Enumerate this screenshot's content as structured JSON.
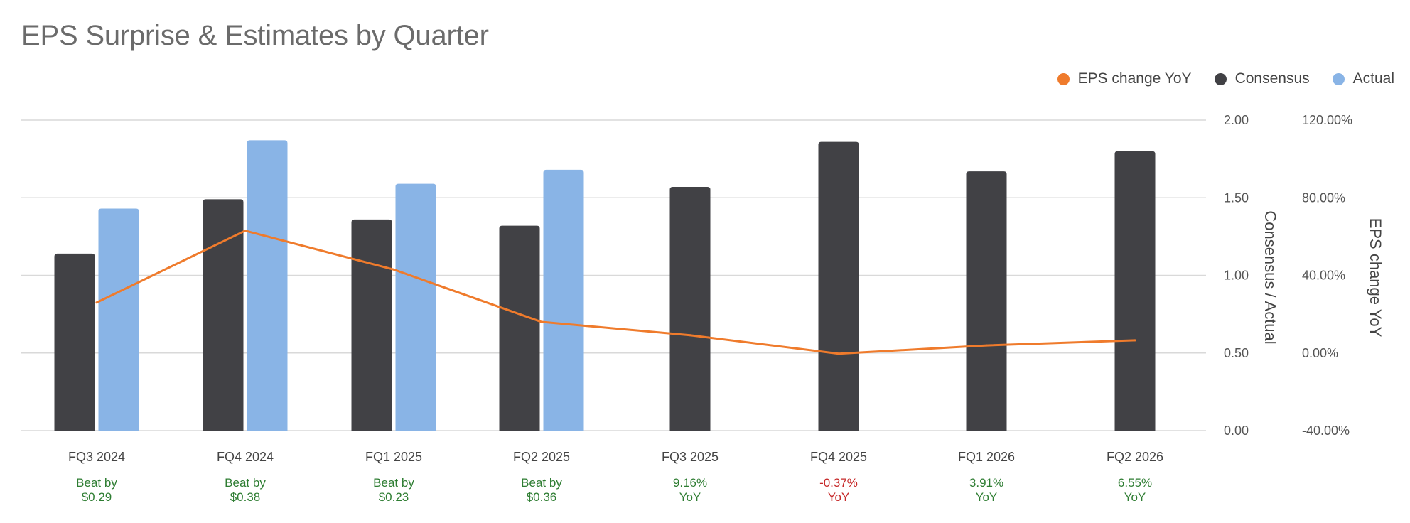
{
  "title": "EPS Surprise & Estimates by Quarter",
  "legend": [
    {
      "label": "EPS change YoY",
      "color": "#ef7b2c",
      "icon": "legend-dot-orange"
    },
    {
      "label": "Consensus",
      "color": "#414145",
      "icon": "legend-dot-dark"
    },
    {
      "label": "Actual",
      "color": "#89b4e6",
      "icon": "legend-dot-blue"
    }
  ],
  "chart_data": {
    "type": "bar",
    "categories": [
      "FQ3 2024",
      "FQ4 2024",
      "FQ1 2025",
      "FQ2 2025",
      "FQ3 2025",
      "FQ4 2025",
      "FQ1 2026",
      "FQ2 2026"
    ],
    "series": [
      {
        "name": "Consensus",
        "type": "bar",
        "axis": "left",
        "color": "#414145",
        "values": [
          1.14,
          1.49,
          1.36,
          1.32,
          1.57,
          1.86,
          1.67,
          1.8
        ]
      },
      {
        "name": "Actual",
        "type": "bar",
        "axis": "left",
        "color": "#89b4e6",
        "values": [
          1.43,
          1.87,
          1.59,
          1.68,
          null,
          null,
          null,
          null
        ]
      },
      {
        "name": "EPS change YoY",
        "type": "line",
        "axis": "right",
        "color": "#ef7b2c",
        "values": [
          26.0,
          63.0,
          43.0,
          16.0,
          9.16,
          -0.37,
          3.91,
          6.55
        ]
      }
    ],
    "y_left": {
      "label": "Consensus / Actual",
      "range": [
        0,
        2
      ],
      "ticks": [
        2.0,
        1.5,
        1.0,
        0.5,
        0.0
      ],
      "tick_labels": [
        "2.00",
        "1.50",
        "1.00",
        "0.50",
        "0.00"
      ]
    },
    "y_right": {
      "label": "EPS change YoY",
      "range": [
        -40,
        120
      ],
      "tick_labels": [
        "120.00%",
        "80.00%",
        "40.00%",
        "0.00%",
        "-40.00%"
      ]
    },
    "grid": true,
    "legend_position": "top-right",
    "annotations": [
      {
        "lines": [
          "Beat by",
          "$0.29"
        ],
        "status": "positive"
      },
      {
        "lines": [
          "Beat by",
          "$0.38"
        ],
        "status": "positive"
      },
      {
        "lines": [
          "Beat by",
          "$0.23"
        ],
        "status": "positive"
      },
      {
        "lines": [
          "Beat by",
          "$0.36"
        ],
        "status": "positive"
      },
      {
        "lines": [
          "9.16%",
          "YoY"
        ],
        "status": "positive"
      },
      {
        "lines": [
          "-0.37%",
          "YoY"
        ],
        "status": "negative"
      },
      {
        "lines": [
          "3.91%",
          "YoY"
        ],
        "status": "positive"
      },
      {
        "lines": [
          "6.55%",
          "YoY"
        ],
        "status": "positive"
      }
    ]
  },
  "colors": {
    "positive": "#2e7d32",
    "negative": "#c62828",
    "grid": "#d9d9d9",
    "axis_text": "#555555",
    "category_text": "#444444"
  }
}
